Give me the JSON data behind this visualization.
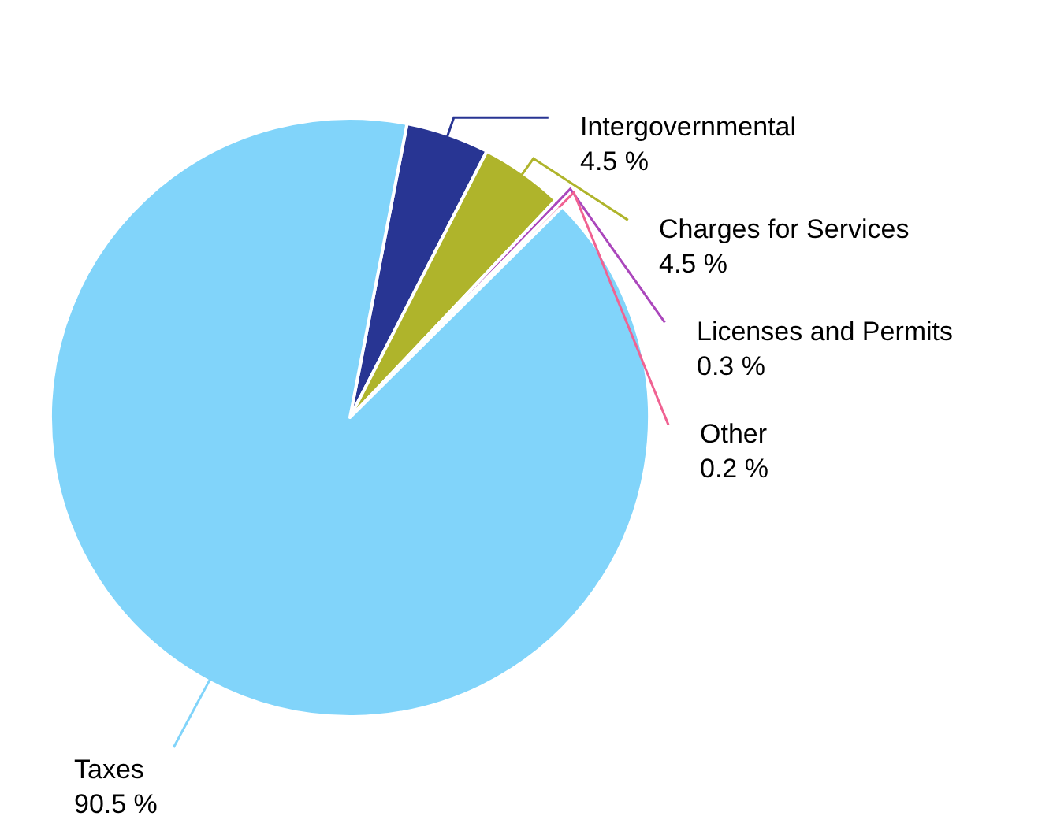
{
  "chart_data": {
    "type": "pie",
    "categories": [
      "Intergovernmental",
      "Charges for Services",
      "Licenses and Permits",
      "Other",
      "Taxes"
    ],
    "values": [
      4.5,
      4.5,
      0.3,
      0.2,
      90.5
    ],
    "colors": [
      "#283593",
      "#afb42b",
      "#ab47bc",
      "#f06292",
      "#81d4fa"
    ],
    "value_labels": [
      "4.5 %",
      "4.5 %",
      "0.3 %",
      "0.2 %",
      "90.5 %"
    ]
  }
}
